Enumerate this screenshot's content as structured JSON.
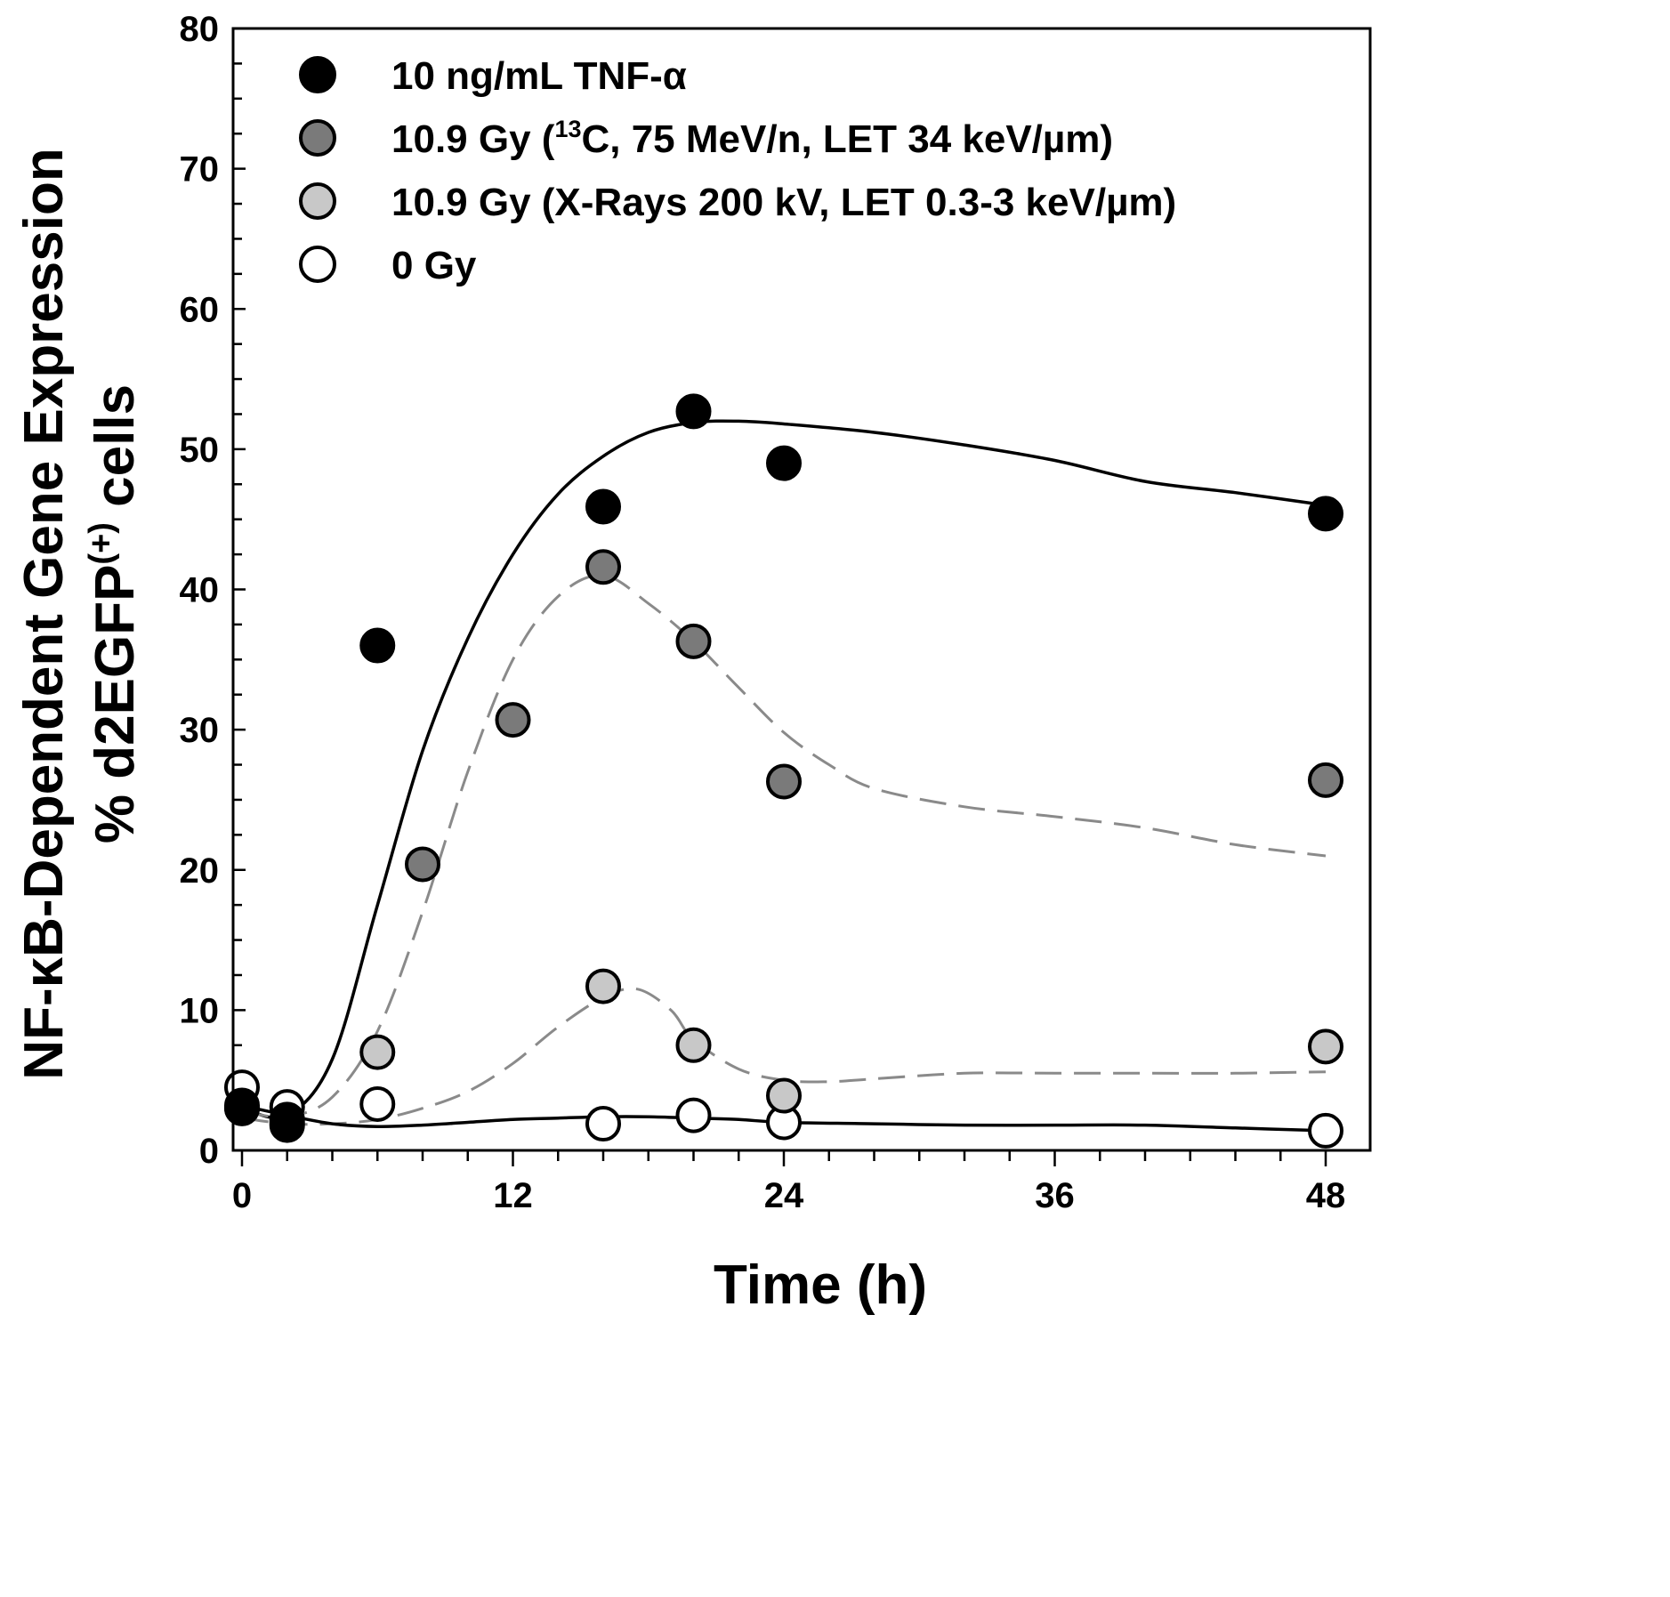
{
  "chart_data": {
    "type": "scatter",
    "title": "",
    "xlabel": "Time (h)",
    "ylabel_line1": "NF-κB-Dependent Gene Expression",
    "ylabel_line2_prefix": "% d2EGFP",
    "ylabel_line2_sup": "(+)",
    "ylabel_line2_suffix": " cells",
    "xlim": [
      0,
      48
    ],
    "ylim": [
      0,
      80
    ],
    "xticks": [
      0,
      12,
      24,
      36,
      48
    ],
    "yticks": [
      0,
      10,
      20,
      30,
      40,
      50,
      60,
      70,
      80
    ],
    "x_minor_step": 2,
    "y_minor_step": 2.5,
    "legend_position": "top-left",
    "series": [
      {
        "name": "10 ng/mL TNF-α",
        "marker_color": "#000000",
        "x": [
          0,
          2,
          6,
          16,
          20,
          24,
          48
        ],
        "y": [
          3.2,
          2.2,
          36.0,
          45.9,
          52.7,
          49.0,
          45.4
        ],
        "fit": {
          "x": [
            0,
            2,
            4,
            6,
            8,
            10,
            12,
            14,
            16,
            18,
            20,
            22,
            24,
            28,
            32,
            36,
            40,
            44,
            48
          ],
          "y": [
            3.0,
            2.5,
            6.5,
            17.5,
            28.5,
            36.5,
            42.5,
            46.8,
            49.5,
            51.2,
            51.9,
            52.0,
            51.8,
            51.2,
            50.3,
            49.2,
            47.7,
            46.9,
            46.0
          ],
          "style": "solid",
          "color": "#000000"
        }
      },
      {
        "name": "10.9 Gy (13C, 75 MeV/n, LET 34 keV/µm)",
        "label_prefix": "10.9 Gy (",
        "label_sup": "13",
        "label_suffix": "C, 75 MeV/n, LET 34 keV/µm)",
        "marker_color": "#7a7a7a",
        "x": [
          0,
          2,
          8,
          12,
          16,
          20,
          24,
          48
        ],
        "y": [
          3.0,
          2.0,
          20.4,
          30.7,
          41.6,
          36.3,
          26.3,
          26.4
        ],
        "fit": {
          "x": [
            0,
            2,
            4,
            6,
            8,
            10,
            12,
            14,
            16,
            18,
            20,
            22,
            24,
            26,
            28,
            32,
            36,
            40,
            44,
            48
          ],
          "y": [
            2.8,
            2.4,
            3.8,
            8.5,
            17.0,
            27.0,
            35.0,
            39.5,
            41.0,
            39.0,
            36.3,
            33.0,
            29.8,
            27.5,
            25.8,
            24.5,
            23.8,
            23.0,
            21.8,
            21.0
          ],
          "style": "dashed",
          "color": "#8a8a8a"
        }
      },
      {
        "name": "10.9 Gy (X-Rays 200 kV, LET 0.3-3 keV/µm)",
        "marker_color": "#c8c8c8",
        "x": [
          0,
          2,
          6,
          16,
          20,
          24,
          48
        ],
        "y": [
          3.0,
          1.8,
          7.0,
          11.7,
          7.5,
          3.9,
          7.4
        ],
        "fit": {
          "x": [
            0,
            2,
            4,
            6,
            8,
            10,
            12,
            14,
            16,
            17.5,
            19,
            20,
            22,
            24,
            26,
            28,
            32,
            36,
            40,
            44,
            48
          ],
          "y": [
            2.3,
            1.9,
            1.9,
            2.2,
            3.0,
            4.2,
            6.2,
            8.8,
            10.9,
            11.5,
            10.0,
            7.9,
            5.8,
            5.0,
            4.9,
            5.1,
            5.5,
            5.5,
            5.5,
            5.5,
            5.6
          ],
          "style": "dashed",
          "color": "#8a8a8a"
        }
      },
      {
        "name": "0 Gy",
        "marker_color": "#ffffff",
        "x": [
          0,
          2,
          6,
          16,
          20,
          24,
          48
        ],
        "y": [
          4.5,
          3.1,
          3.3,
          1.9,
          2.5,
          2.0,
          1.4
        ],
        "fit": {
          "x": [
            0,
            2,
            4,
            6,
            8,
            10,
            12,
            14,
            16,
            18,
            20,
            22,
            24,
            28,
            32,
            36,
            40,
            44,
            48
          ],
          "y": [
            3.2,
            2.5,
            1.9,
            1.7,
            1.8,
            2.0,
            2.2,
            2.3,
            2.4,
            2.4,
            2.3,
            2.2,
            2.0,
            1.9,
            1.8,
            1.8,
            1.8,
            1.6,
            1.4
          ],
          "style": "solid",
          "color": "#000000"
        }
      }
    ]
  }
}
